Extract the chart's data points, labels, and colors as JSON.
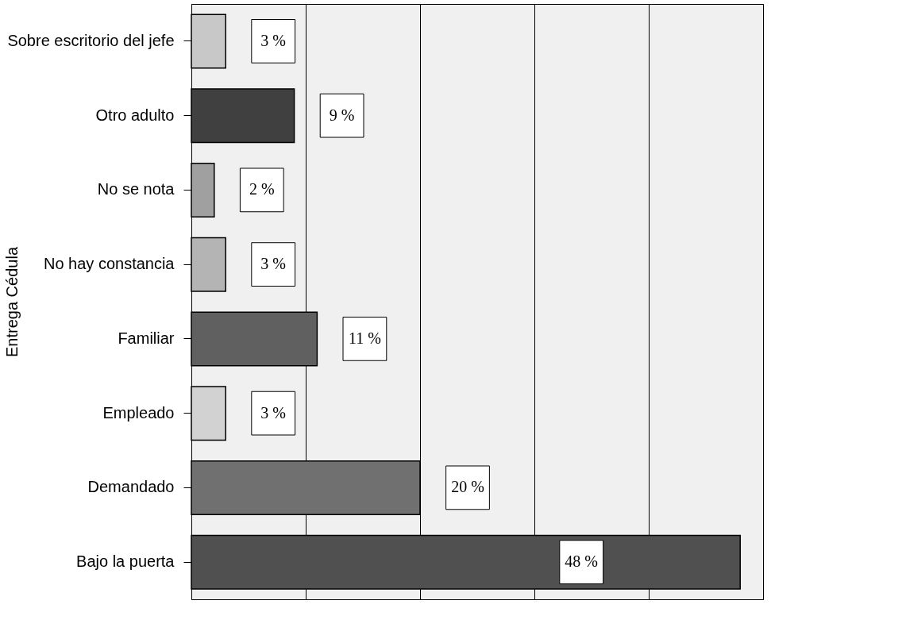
{
  "chart_data": {
    "type": "bar",
    "orientation": "horizontal",
    "ylabel": "Entrega Cédula",
    "categories": [
      "Sobre escritorio del jefe",
      "Otro adulto",
      "No se nota",
      "No hay constancia",
      "Familiar",
      "Empleado",
      "Demandado",
      "Bajo la puerta"
    ],
    "values": [
      3,
      9,
      2,
      3,
      11,
      3,
      20,
      48
    ],
    "value_labels": [
      "3 %",
      "9 %",
      "2 %",
      "3 %",
      "11 %",
      "3 %",
      "20 %",
      "48 %"
    ],
    "colors": [
      "#c8c8c8",
      "#404040",
      "#a0a0a0",
      "#b4b4b4",
      "#606060",
      "#d2d2d2",
      "#707070",
      "#505050"
    ],
    "xlim": [
      0,
      50
    ],
    "xticks": [
      {
        "value": 0,
        "label": null
      },
      {
        "value": 10,
        "label": null
      },
      {
        "value": 20,
        "label": null
      },
      {
        "value": 30,
        "label": null
      },
      {
        "value": 40,
        "label": null
      },
      {
        "value": 50,
        "label": null
      }
    ],
    "grid": "x"
  }
}
